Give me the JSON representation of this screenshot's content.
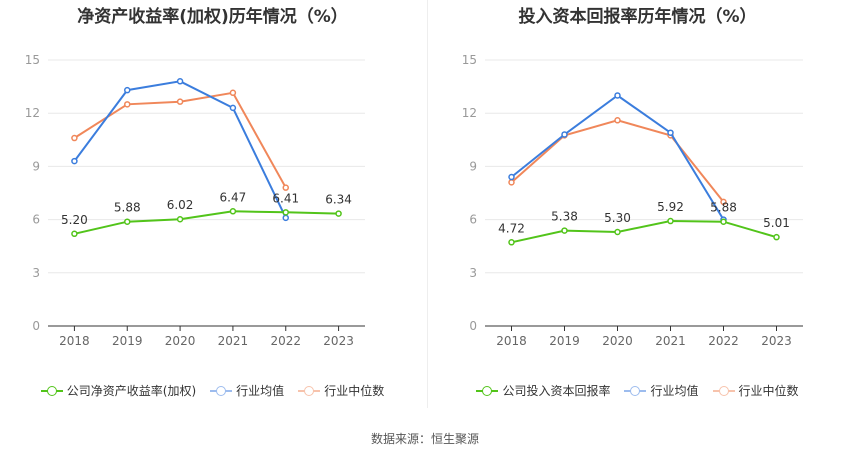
{
  "source": "数据来源：恒生聚源",
  "chart_data": [
    {
      "type": "line",
      "title": "净资产收益率(加权)历年情况（%）",
      "categories": [
        "2018",
        "2019",
        "2020",
        "2021",
        "2022",
        "2023"
      ],
      "ylim": [
        0,
        15
      ],
      "yticks": [
        "0",
        "3",
        "6",
        "9",
        "12",
        "15"
      ],
      "grid": true,
      "legend_position": "bottom",
      "series": [
        {
          "name": "公司净资产收益率(加权)",
          "color": "#52c41a",
          "values": [
            5.2,
            5.88,
            6.02,
            6.47,
            6.41,
            6.34
          ],
          "labels": [
            "5.20",
            "5.88",
            "6.02",
            "6.47",
            "6.41",
            "6.34"
          ]
        },
        {
          "name": "行业均值",
          "color": "#3b7ddd",
          "values": [
            9.3,
            13.3,
            13.8,
            12.3,
            6.1,
            null
          ]
        },
        {
          "name": "行业中位数",
          "color": "#f0875a",
          "values": [
            10.6,
            12.5,
            12.65,
            13.15,
            7.8,
            null
          ]
        }
      ]
    },
    {
      "type": "line",
      "title": "投入资本回报率历年情况（%）",
      "categories": [
        "2018",
        "2019",
        "2020",
        "2021",
        "2022",
        "2023"
      ],
      "ylim": [
        0,
        15
      ],
      "yticks": [
        "0",
        "3",
        "6",
        "9",
        "12",
        "15"
      ],
      "grid": true,
      "legend_position": "bottom",
      "series": [
        {
          "name": "公司投入资本回报率",
          "color": "#52c41a",
          "values": [
            4.72,
            5.38,
            5.3,
            5.92,
            5.88,
            5.01
          ],
          "labels": [
            "4.72",
            "5.38",
            "5.30",
            "5.92",
            "5.88",
            "5.01"
          ]
        },
        {
          "name": "行业均值",
          "color": "#3b7ddd",
          "values": [
            8.4,
            10.8,
            13.0,
            10.9,
            6.0,
            null
          ]
        },
        {
          "name": "行业中位数",
          "color": "#f0875a",
          "values": [
            8.1,
            10.75,
            11.6,
            10.75,
            7.0,
            null
          ]
        }
      ]
    }
  ]
}
